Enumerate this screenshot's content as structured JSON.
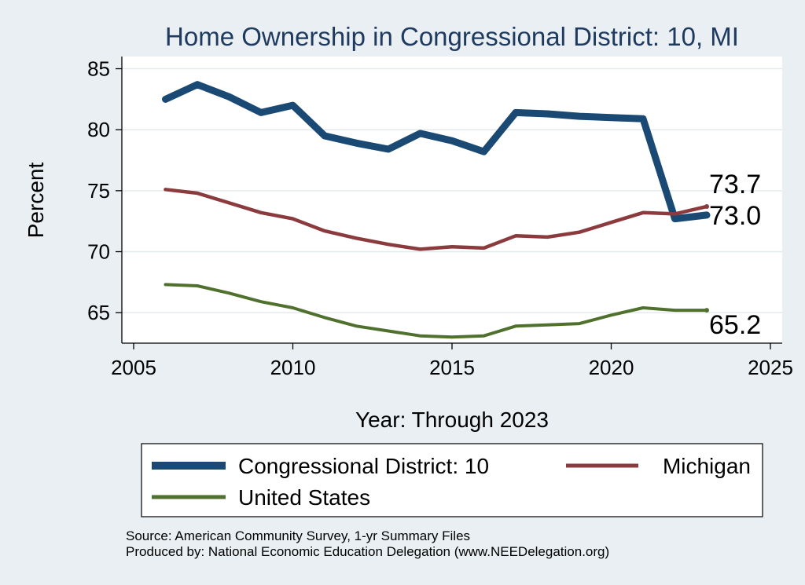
{
  "chart_data": {
    "type": "line",
    "title": "Home Ownership in Congressional District:  10, MI",
    "xlabel": "Year: Through 2023",
    "ylabel": "Percent",
    "xlim": [
      2005,
      2025
    ],
    "ylim": [
      62.5,
      86
    ],
    "xticks": [
      "2005",
      "2010",
      "2015",
      "2020",
      "2025"
    ],
    "yticks": [
      "65",
      "70",
      "75",
      "80",
      "85"
    ],
    "grid": true,
    "legend_position": "bottom",
    "x": [
      2006,
      2007,
      2008,
      2009,
      2010,
      2011,
      2012,
      2013,
      2014,
      2015,
      2016,
      2017,
      2018,
      2019,
      2020,
      2021,
      2022,
      2023
    ],
    "series": [
      {
        "name": "Congressional District:  10",
        "color": "#1a4a74",
        "values": [
          82.5,
          83.7,
          82.7,
          81.4,
          82.0,
          79.5,
          78.9,
          78.4,
          79.7,
          79.1,
          78.2,
          81.4,
          81.3,
          81.1,
          81.0,
          80.9,
          72.7,
          73.0
        ],
        "end_label": "73.0"
      },
      {
        "name": "Michigan",
        "color": "#8b3b3e",
        "values": [
          75.1,
          74.8,
          74.0,
          73.2,
          72.7,
          71.7,
          71.1,
          70.6,
          70.2,
          70.4,
          70.3,
          71.3,
          71.2,
          71.6,
          72.4,
          73.2,
          73.1,
          73.7
        ],
        "end_label": "73.7"
      },
      {
        "name": "United States",
        "color": "#50712e",
        "values": [
          67.3,
          67.2,
          66.6,
          65.9,
          65.4,
          64.6,
          63.9,
          63.5,
          63.1,
          63.0,
          63.1,
          63.9,
          64.0,
          64.1,
          64.8,
          65.4,
          65.2,
          65.2
        ],
        "end_label": "65.2"
      }
    ],
    "notes": [
      "Source: American Community Survey, 1-yr Summary Files",
      "Produced by: National Economic Education Delegation (www.NEEDelegation.org)"
    ]
  }
}
